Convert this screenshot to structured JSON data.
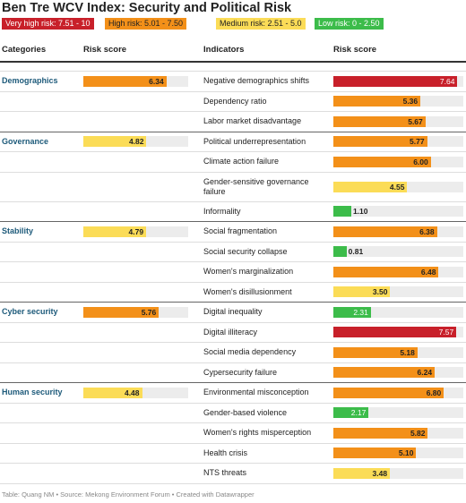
{
  "title": "Ben Tre WCV Index: Security and Political Risk",
  "legend": [
    {
      "label": "Very high risk: 7.51 - 10",
      "color": "#c8202a"
    },
    {
      "label": "High risk: 5.01 - 7.50",
      "color": "#f39019"
    },
    {
      "label": "Medium risk: 2.51 - 5.0",
      "color": "#fbdc57"
    },
    {
      "label": "Low risk: 0 - 2.50",
      "color": "#3cbc4a"
    }
  ],
  "table": {
    "columns": [
      "Categories",
      "Risk score",
      "Indicators",
      "Risk score"
    ],
    "xlim": [
      0,
      8
    ],
    "groups": [
      {
        "category": "Demographics",
        "score": 6.34,
        "color": "#f39019",
        "indicators": [
          {
            "name": "Negative demographics shifts",
            "score": 7.64,
            "color": "#c8202a"
          },
          {
            "name": "Dependency ratio",
            "score": 5.36,
            "color": "#f39019"
          },
          {
            "name": "Labor market disadvantage",
            "score": 5.67,
            "color": "#f39019"
          }
        ]
      },
      {
        "category": "Governance",
        "score": 4.82,
        "color": "#fbdc57",
        "indicators": [
          {
            "name": "Political underrepresentation",
            "score": 5.77,
            "color": "#f39019"
          },
          {
            "name": "Climate action failure",
            "score": 6,
            "score_label": "6.00",
            "color": "#f39019"
          },
          {
            "name": "Gender-sensitive governance failure",
            "score": 4.55,
            "color": "#fbdc57"
          },
          {
            "name": "Informality",
            "score": 1.1,
            "score_label": "1.10",
            "color": "#3cbc4a"
          }
        ]
      },
      {
        "category": "Stability",
        "score": 4.79,
        "color": "#fbdc57",
        "indicators": [
          {
            "name": "Social fragmentation",
            "score": 6.38,
            "color": "#f39019"
          },
          {
            "name": "Social security collapse",
            "score": 0.81,
            "color": "#3cbc4a"
          },
          {
            "name": "Women's marginalization",
            "score": 6.48,
            "color": "#f39019"
          },
          {
            "name": "Women's disillusionment",
            "score": 3.5,
            "score_label": "3.50",
            "color": "#fbdc57"
          }
        ]
      },
      {
        "category": "Cyber security",
        "score": 5.76,
        "color": "#f39019",
        "indicators": [
          {
            "name": "Digital inequality",
            "score": 2.31,
            "color": "#3cbc4a"
          },
          {
            "name": "Digital illiteracy",
            "score": 7.57,
            "color": "#c8202a"
          },
          {
            "name": "Social media dependency",
            "score": 5.18,
            "color": "#f39019"
          },
          {
            "name": "Cypersecurity failure",
            "score": 6.24,
            "color": "#f39019"
          }
        ]
      },
      {
        "category": "Human security",
        "score": 4.48,
        "color": "#fbdc57",
        "indicators": [
          {
            "name": "Environmental misconception",
            "score": 6.8,
            "score_label": "6.80",
            "color": "#f39019"
          },
          {
            "name": "Gender-based violence",
            "score": 2.17,
            "color": "#3cbc4a"
          },
          {
            "name": "Women's rights misperception",
            "score": 5.82,
            "color": "#f39019"
          },
          {
            "name": "Health crisis",
            "score": 5.1,
            "score_label": "5.10",
            "color": "#f39019"
          },
          {
            "name": "NTS threats",
            "score": 3.48,
            "color": "#fbdc57"
          }
        ]
      }
    ]
  },
  "footer": "Table: Quang NM • Source: Mekong Environment Forum • Created with Datawrapper"
}
